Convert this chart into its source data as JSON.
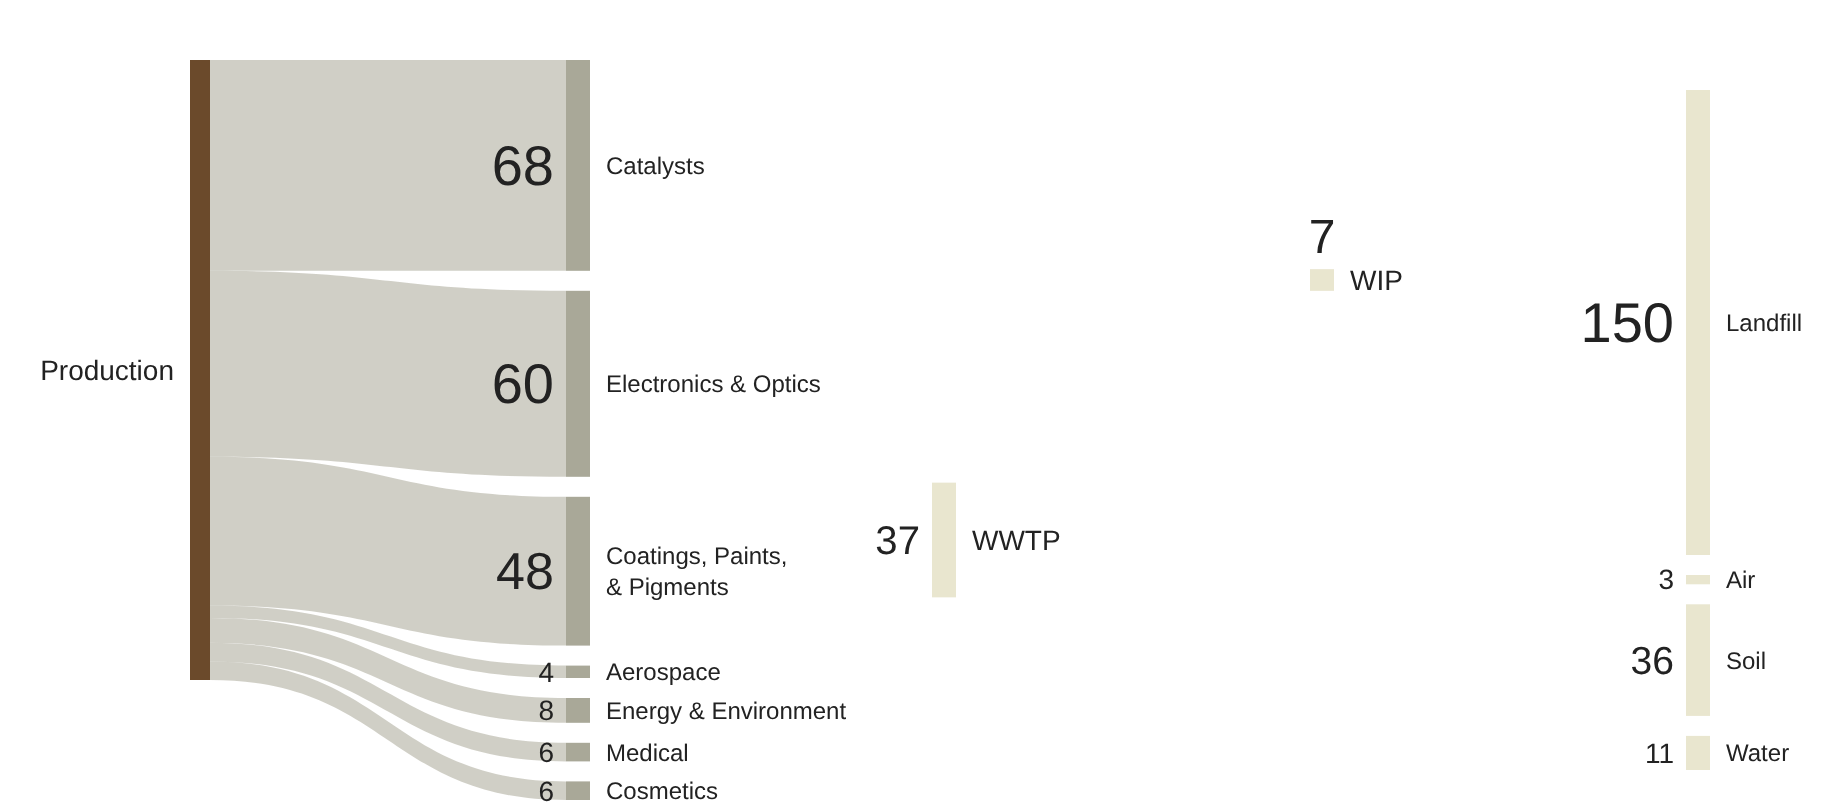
{
  "chart_data": {
    "type": "other",
    "data_labels": true,
    "categories": [
      "Production",
      "Catalysts",
      "Electronics & Optics",
      "Coatings, Paints, & Pigments",
      "Aerospace",
      "Energy & Environment",
      "Medical",
      "Cosmetics",
      "WWTP",
      "WIP",
      "Landfill",
      "Air",
      "Soil",
      "Water"
    ],
    "values": [
      null,
      68,
      60,
      48,
      4,
      8,
      6,
      6,
      37,
      7,
      150,
      3,
      36,
      11
    ],
    "colors": [
      "#6b4a2b",
      "#a9a898",
      "#a9a898",
      "#a9a898",
      "#a9a898",
      "#a9a898",
      "#a9a898",
      "#a9a898",
      "#e9e6cf",
      "#e9e6cf",
      "#e9e6cf",
      "#e9e6cf",
      "#e9e6cf",
      "#e9e6cf"
    ]
  }
}
